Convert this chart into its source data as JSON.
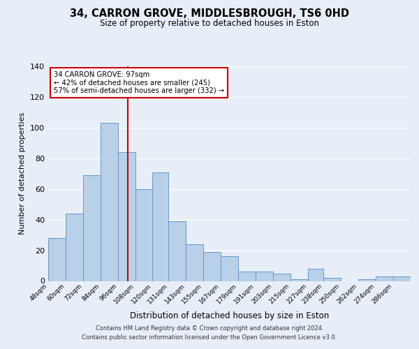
{
  "title": "34, CARRON GROVE, MIDDLESBROUGH, TS6 0HD",
  "subtitle": "Size of property relative to detached houses in Eston",
  "xlabel": "Distribution of detached houses by size in Eston",
  "ylabel": "Number of detached properties",
  "footnote1": "Contains HM Land Registry data © Crown copyright and database right 2024.",
  "footnote2": "Contains public sector information licensed under the Open Government Licence v3.0.",
  "bin_labels": [
    "48sqm",
    "60sqm",
    "72sqm",
    "84sqm",
    "96sqm",
    "108sqm",
    "120sqm",
    "131sqm",
    "143sqm",
    "155sqm",
    "167sqm",
    "179sqm",
    "191sqm",
    "203sqm",
    "215sqm",
    "227sqm",
    "238sqm",
    "250sqm",
    "262sqm",
    "274sqm",
    "286sqm"
  ],
  "bar_values": [
    28,
    44,
    69,
    103,
    84,
    60,
    71,
    39,
    24,
    19,
    16,
    6,
    6,
    5,
    1,
    8,
    2,
    0,
    1,
    3,
    3
  ],
  "bin_edges": [
    42,
    54,
    66,
    78,
    90,
    102,
    114,
    125,
    137,
    149,
    161,
    173,
    185,
    197,
    209,
    221,
    232,
    244,
    256,
    268,
    280,
    292
  ],
  "bar_color": "#b8d0e8",
  "bar_edge_color": "#6699cc",
  "property_size": 97,
  "vline_color": "#cc0000",
  "annotation_box_edge": "#cc0000",
  "annotation_text1": "34 CARRON GROVE: 97sqm",
  "annotation_text2": "← 42% of detached houses are smaller (245)",
  "annotation_text3": "57% of semi-detached houses are larger (332) →",
  "ylim": [
    0,
    140
  ],
  "yticks": [
    0,
    20,
    40,
    60,
    80,
    100,
    120,
    140
  ],
  "background_color": "#e8eef8",
  "plot_background": "#e8eef8"
}
